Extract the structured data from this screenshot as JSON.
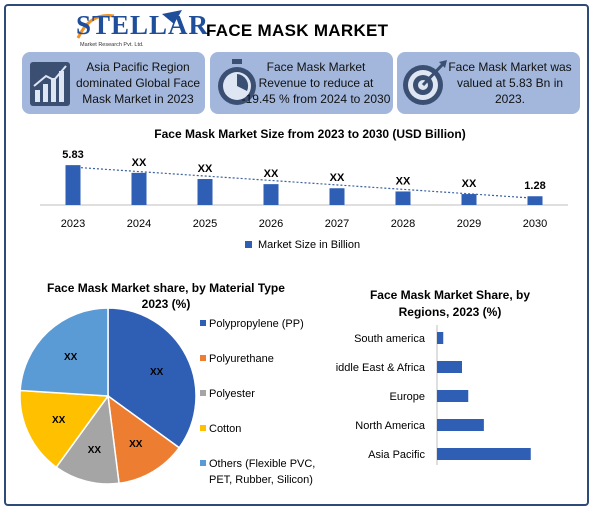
{
  "header": {
    "logo_word": "STELLAR",
    "logo_sub": "Market Research Pvt. Ltd.",
    "title": "FACE MASK MARKET"
  },
  "cards": [
    {
      "text_lines": [
        "Asia Pacific Region",
        "dominated Global Face",
        "Mask Market in 2023"
      ],
      "icon": "bar-chart-icon"
    },
    {
      "text_lines": [
        "Face Mask Market",
        "Revenue to reduce at",
        "-19.45 % from 2024 to 2030"
      ],
      "icon": "stopwatch-icon"
    },
    {
      "text_lines": [
        "Face Mask Market was",
        "valued at 5.83 Bn in",
        "2023."
      ],
      "icon": "target-icon"
    }
  ],
  "colors": {
    "bar": "#2e5fb5",
    "card_bg": "#a3b7dd",
    "frame": "#2d4a78"
  },
  "chart_data": [
    {
      "type": "bar",
      "title": "Face Mask Market Size from 2023 to 2030 (USD Billion)",
      "categories": [
        "2023",
        "2024",
        "2025",
        "2026",
        "2027",
        "2028",
        "2029",
        "2030"
      ],
      "series": [
        {
          "name": "Market Size in Billion",
          "values": [
            5.83,
            4.7,
            3.8,
            3.05,
            2.45,
            1.98,
            1.6,
            1.28
          ]
        }
      ],
      "data_labels": [
        "5.83",
        "XX",
        "XX",
        "XX",
        "XX",
        "XX",
        "XX",
        "1.28"
      ],
      "trendline": true,
      "ylim": [
        0,
        6.5
      ],
      "legend": "bottom",
      "grid": false
    },
    {
      "type": "pie",
      "title_lines": [
        "Face Mask Market share, by Material Type",
        "2023 (%)"
      ],
      "categories": [
        "Polypropylene (PP)",
        "Polyurethane",
        "Polyester",
        "Cotton",
        "Others (Flexible PVC, PET, Rubber, Silicon)"
      ],
      "legend_lines": [
        [
          "Polypropylene (PP)"
        ],
        [
          "Polyurethane"
        ],
        [
          "Polyester"
        ],
        [
          "Cotton"
        ],
        [
          "Others (Flexible PVC,",
          "PET, Rubber, Silicon)"
        ]
      ],
      "values": [
        35,
        13,
        12,
        16,
        24
      ],
      "data_labels": [
        "XX",
        "XX",
        "XX",
        "XX",
        "XX"
      ],
      "colors": [
        "#2e5fb5",
        "#ed7d31",
        "#a5a5a5",
        "#ffc000",
        "#5b9bd5"
      ],
      "legend": "right"
    },
    {
      "type": "bar",
      "orientation": "horizontal",
      "title_lines": [
        "Face Mask Market Share, by",
        "Regions, 2023 (%)"
      ],
      "categories": [
        "South america",
        "iddle East & Africa",
        "Europe",
        "North America",
        "Asia Pacific"
      ],
      "values": [
        2,
        8,
        10,
        15,
        30
      ],
      "xlim": [
        0,
        32
      ],
      "grid": false
    }
  ]
}
